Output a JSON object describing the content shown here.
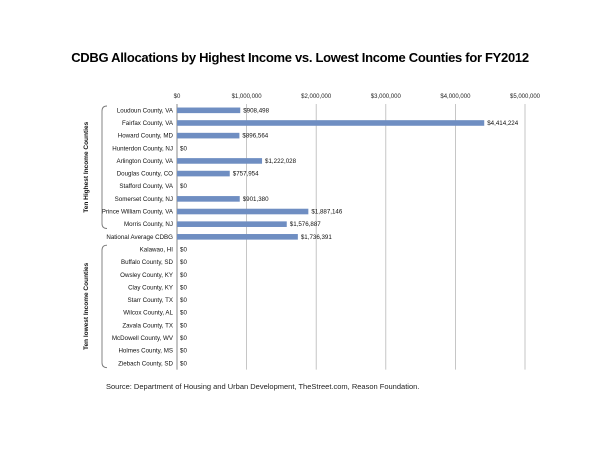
{
  "chart_data": {
    "type": "bar",
    "orientation": "horizontal",
    "title": "CDBG Allocations by Highest Income vs. Lowest Income Counties for FY2012",
    "xlim": [
      0,
      5000000
    ],
    "x_ticks": [
      "$0",
      "$1,000,000",
      "$2,000,000",
      "$3,000,000",
      "$4,000,000",
      "$5,000,000"
    ],
    "x_tick_values": [
      0,
      1000000,
      2000000,
      3000000,
      4000000,
      5000000
    ],
    "grid": true,
    "bar_color": "#6f8ec2",
    "categories": [
      "Loudoun County, VA",
      "Fairfax County, VA",
      "Howard County, MD",
      "Hunterdon County, NJ",
      "Arlington County, VA",
      "Douglas County, CO",
      "Stafford County, VA",
      "Somerset County, NJ",
      "Prince William County, VA",
      "Morris County, NJ",
      "National Average CDBG",
      "Kalawao, HI",
      "Buffalo County, SD",
      "Owsley County, KY",
      "Clay County, KY",
      "Starr County, TX",
      "Wilcox County, AL",
      "Zavala County, TX",
      "McDowell County, WV",
      "Holmes County, MS",
      "Ziebach County, SD"
    ],
    "values": [
      908498,
      4414224,
      896564,
      0,
      1222028,
      757954,
      0,
      901380,
      1887146,
      1576887,
      1736391,
      0,
      0,
      0,
      0,
      0,
      0,
      0,
      0,
      0,
      0
    ],
    "value_labels": [
      "$908,498",
      "$4,414,224",
      "$896,564",
      "$0",
      "$1,222,028",
      "$757,954",
      "$0",
      "$901,380",
      "$1,887,146",
      "$1,576,887",
      "$1,736,391",
      "$0",
      "$0",
      "$0",
      "$0",
      "$0",
      "$0",
      "$0",
      "$0",
      "$0",
      "$0"
    ],
    "groups": [
      {
        "label": "Ten Highest Income Counties",
        "range": [
          0,
          9
        ]
      },
      {
        "label": "Ten lowest Income Counties",
        "range": [
          11,
          20
        ]
      }
    ]
  },
  "source": "Source: Department of Housing and Urban Development, TheStreet.com, Reason Foundation."
}
